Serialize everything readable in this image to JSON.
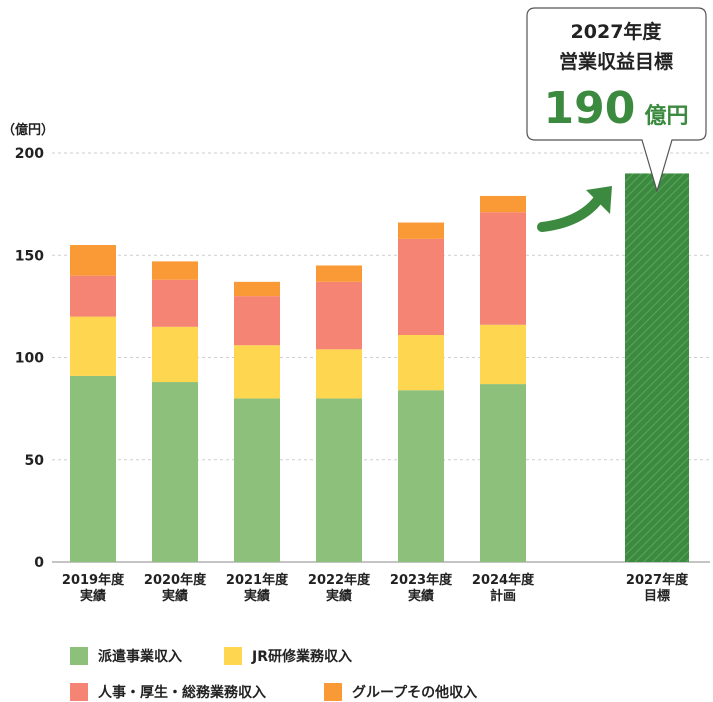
{
  "chart_data": {
    "type": "bar",
    "stacked": true,
    "unit_label": "（億円）",
    "ylim": [
      0,
      200
    ],
    "yticks": [
      0,
      50,
      100,
      150,
      200
    ],
    "grid": true,
    "categories": [
      [
        "2019年度",
        "実績"
      ],
      [
        "2020年度",
        "実績"
      ],
      [
        "2021年度",
        "実績"
      ],
      [
        "2022年度",
        "実績"
      ],
      [
        "2023年度",
        "実績"
      ],
      [
        "2024年度",
        "計画"
      ],
      [
        "2027年度",
        "目標"
      ]
    ],
    "series": [
      {
        "name": "派遣事業収入",
        "color": "#8DC07A",
        "values": [
          91,
          88,
          80,
          80,
          84,
          87,
          null
        ]
      },
      {
        "name": "JR研修業務収入",
        "color": "#FFD64F",
        "values": [
          29,
          27,
          26,
          24,
          27,
          29,
          null
        ]
      },
      {
        "name": "人事・厚生・総務業務収入",
        "color": "#F58474",
        "values": [
          20,
          23,
          24,
          33,
          47,
          55,
          null
        ]
      },
      {
        "name": "グループその他収入",
        "color": "#FA9A36",
        "values": [
          15,
          9,
          7,
          8,
          8,
          8,
          null
        ]
      }
    ],
    "target": {
      "category_index": 6,
      "value": 190,
      "color": "#3C8A3F",
      "callout_lines": [
        "2027年度",
        "営業収益目標"
      ],
      "callout_value": "190",
      "callout_unit": "億円"
    },
    "legend_position": "bottom-left"
  }
}
